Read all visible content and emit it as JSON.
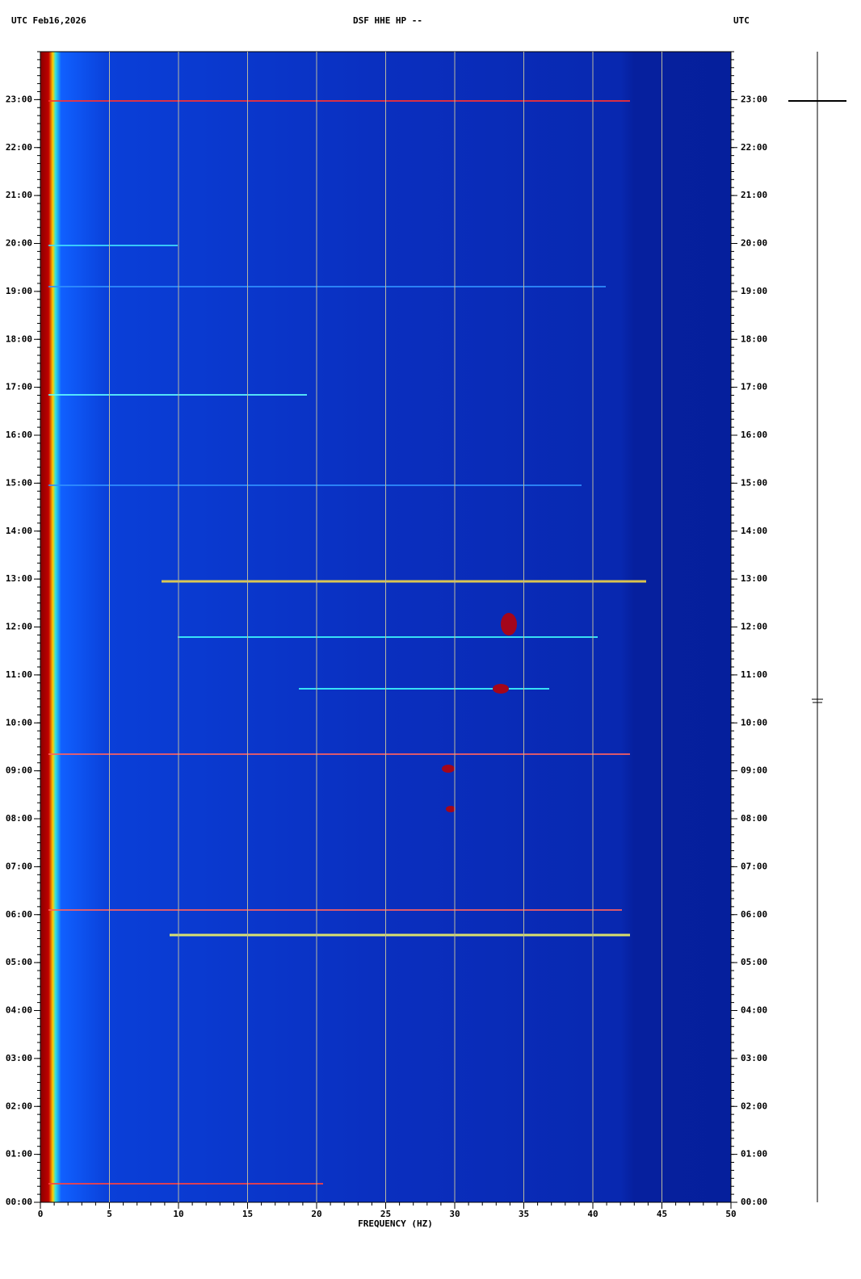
{
  "chart_data": {
    "type": "spectrogram",
    "title": "DSF HHE HP --",
    "date_label": "UTC  Feb16,2026",
    "timezone_label": "UTC",
    "xlabel": "FREQUENCY (HZ)",
    "xlim": [
      0,
      50
    ],
    "xticks": [
      0,
      5,
      10,
      15,
      20,
      25,
      30,
      35,
      40,
      45,
      50
    ],
    "ylim": [
      0,
      24
    ],
    "yticks": [
      {
        "value": 0,
        "label": "00:00"
      },
      {
        "value": 1,
        "label": "01:00"
      },
      {
        "value": 2,
        "label": "02:00"
      },
      {
        "value": 3,
        "label": "03:00"
      },
      {
        "value": 4,
        "label": "04:00"
      },
      {
        "value": 5,
        "label": "05:00"
      },
      {
        "value": 6,
        "label": "06:00"
      },
      {
        "value": 7,
        "label": "07:00"
      },
      {
        "value": 8,
        "label": "08:00"
      },
      {
        "value": 9,
        "label": "09:00"
      },
      {
        "value": 10,
        "label": "10:00"
      },
      {
        "value": 11,
        "label": "11:00"
      },
      {
        "value": 12,
        "label": "12:00"
      },
      {
        "value": 13,
        "label": "13:00"
      },
      {
        "value": 14,
        "label": "14:00"
      },
      {
        "value": 15,
        "label": "15:00"
      },
      {
        "value": 16,
        "label": "16:00"
      },
      {
        "value": 17,
        "label": "17:00"
      },
      {
        "value": 18,
        "label": "18:00"
      },
      {
        "value": 19,
        "label": "19:00"
      },
      {
        "value": 20,
        "label": "20:00"
      },
      {
        "value": 21,
        "label": "21:00"
      },
      {
        "value": 22,
        "label": "22:00"
      },
      {
        "value": 23,
        "label": "23:00"
      }
    ],
    "grid": true,
    "grid_color": "#b8b8a0"
  }
}
